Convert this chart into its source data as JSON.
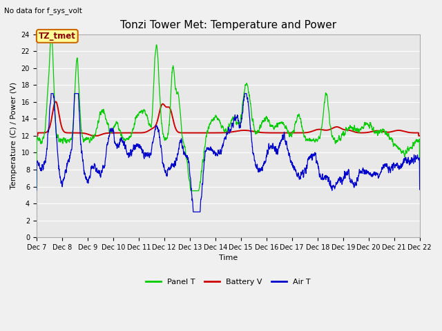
{
  "title": "Tonzi Tower Met: Temperature and Power",
  "top_left_note": "No data for f_sys_volt",
  "xlabel": "Time",
  "ylabel": "Temperature (C) / Power (V)",
  "xlim": [
    0,
    360
  ],
  "ylim": [
    0,
    24
  ],
  "yticks": [
    0,
    2,
    4,
    6,
    8,
    10,
    12,
    14,
    16,
    18,
    20,
    22,
    24
  ],
  "xtick_labels": [
    "Dec 7",
    "Dec 8",
    "Dec 9",
    "Dec 10",
    "Dec 11",
    "Dec 12",
    "Dec 13",
    "Dec 14",
    "Dec 15",
    "Dec 16",
    "Dec 17",
    "Dec 18",
    "Dec 19",
    "Dec 20",
    "Dec 21",
    "Dec 22"
  ],
  "xtick_positions": [
    0,
    24,
    48,
    72,
    96,
    120,
    144,
    168,
    192,
    216,
    240,
    264,
    288,
    312,
    336,
    360
  ],
  "legend_labels": [
    "Panel T",
    "Battery V",
    "Air T"
  ],
  "legend_colors": [
    "#00cc00",
    "#cc0000",
    "#0000cc"
  ],
  "bg_color": "#e8e8e8",
  "grid_color": "#ffffff",
  "fig_bg_color": "#f0f0f0",
  "annotation_text": "TZ_tmet",
  "annotation_bg": "#ffff99",
  "annotation_border": "#cc6600",
  "title_fontsize": 11,
  "tick_fontsize": 7,
  "label_fontsize": 8,
  "legend_fontsize": 8
}
